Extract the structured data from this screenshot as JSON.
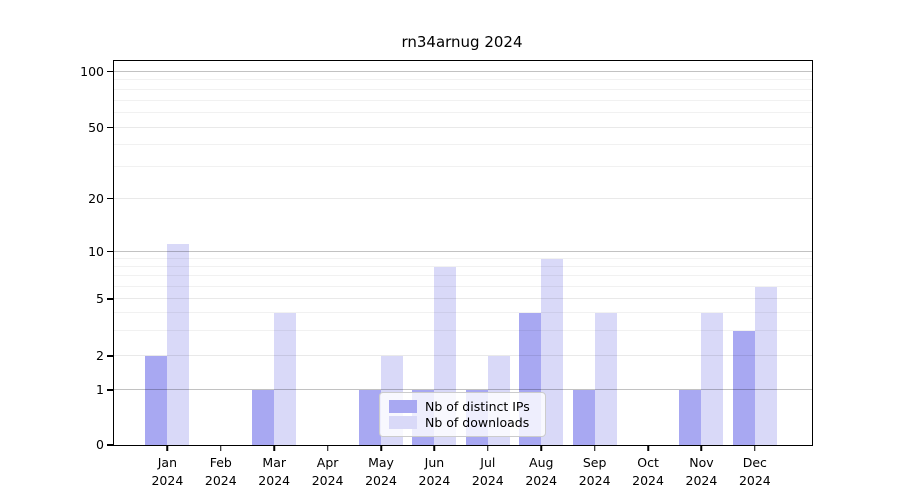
{
  "chart_data": {
    "type": "bar",
    "title": "rn34arnug 2024",
    "categories": [
      "Jan",
      "Feb",
      "Mar",
      "Apr",
      "May",
      "Jun",
      "Jul",
      "Aug",
      "Sep",
      "Oct",
      "Nov",
      "Dec"
    ],
    "year": "2024",
    "series": [
      {
        "name": "Nb of distinct IPs",
        "color": "#a8a8f2",
        "values": [
          2,
          0,
          1,
          0,
          1,
          1,
          1,
          4,
          1,
          0,
          1,
          3
        ]
      },
      {
        "name": "Nb of downloads",
        "color": "#d9d9f8",
        "values": [
          11,
          0,
          4,
          0,
          2,
          8,
          2,
          9,
          4,
          0,
          4,
          6
        ]
      }
    ],
    "xlabel": "",
    "ylabel": "",
    "yticks": [
      0,
      1,
      2,
      5,
      10,
      20,
      50,
      100
    ],
    "ytick_labels": [
      "0",
      "1",
      "2",
      "5",
      "10",
      "20",
      "50",
      "100"
    ],
    "yscale": "log-like with 0 baseline (ticks 0,1,2,5,10,20,50,100)",
    "ylim": [
      0,
      110
    ],
    "grid": "horizontal major and log-minor gridlines",
    "legend_position": "inside plot, lower center",
    "colors": {
      "distinct_ips": "#a8a8f2",
      "downloads": "#d9d9f8",
      "axis": "#000000",
      "decade_gridline": "#c4c4c4",
      "minor_gridline": "#efefef",
      "background": "#ffffff"
    }
  }
}
